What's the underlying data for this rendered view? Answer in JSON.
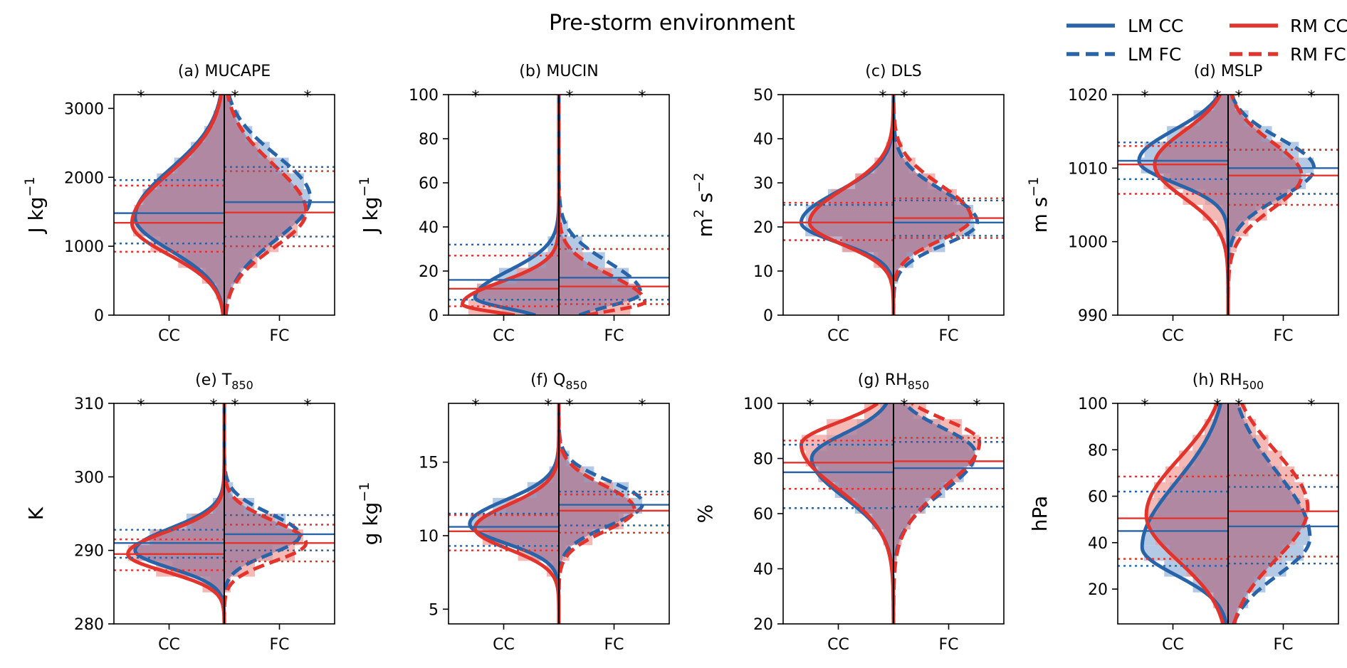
{
  "figure": {
    "title": "Pre-storm environment",
    "colors": {
      "lm": "#2a64a8",
      "rm": "#e2342d",
      "overlap": "#8a6e98",
      "lm_fill": "#93b2d8",
      "rm_fill": "#f09b96",
      "star_black": "#000000"
    },
    "legend": {
      "placement": "top-right",
      "entries": [
        {
          "key": "lm_cc",
          "label": "LM CC",
          "color": "#2a64a8",
          "style": "solid"
        },
        {
          "key": "rm_cc",
          "label": "RM CC",
          "color": "#e2342d",
          "style": "solid"
        },
        {
          "key": "lm_fc",
          "label": "LM FC",
          "color": "#2a64a8",
          "style": "dashed"
        },
        {
          "key": "rm_fc",
          "label": "RM FC",
          "color": "#e2342d",
          "style": "dashed"
        }
      ]
    }
  },
  "chart_data": [
    {
      "type": "violin",
      "title_pre": "(a) MUCAPE",
      "title_sub": "",
      "ylabel_pre": "J kg",
      "ylabel_sup": "−1",
      "ylabel_post": "",
      "ylim": [
        0,
        3200
      ],
      "yticks": [
        "0",
        "1000",
        "2000",
        "3000"
      ],
      "ytick_values": [
        0,
        1000,
        2000,
        3000
      ],
      "categories": [
        "CC",
        "FC"
      ],
      "stars": [
        "black",
        "blue",
        "red",
        "black"
      ],
      "distributions": {
        "lm_cc": {
          "mode": 1420,
          "spread_lo": 480,
          "spread_hi": 700,
          "peak": 0.85
        },
        "rm_cc": {
          "mode": 1330,
          "spread_lo": 450,
          "spread_hi": 720,
          "peak": 0.88
        },
        "lm_fc": {
          "mode": 1700,
          "spread_lo": 600,
          "spread_hi": 620,
          "peak": 0.82
        },
        "rm_fc": {
          "mode": 1500,
          "spread_lo": 520,
          "spread_hi": 680,
          "peak": 0.78
        }
      },
      "stats": {
        "lm_cc": {
          "median": 1480,
          "q1": 1040,
          "q3": 1960
        },
        "rm_cc": {
          "median": 1340,
          "q1": 920,
          "q3": 1880
        },
        "lm_fc": {
          "median": 1640,
          "q1": 1140,
          "q3": 2150
        },
        "rm_fc": {
          "median": 1490,
          "q1": 1000,
          "q3": 2090
        }
      }
    },
    {
      "type": "violin",
      "title_pre": "(b) MUCIN",
      "title_sub": "",
      "ylabel_pre": "J kg",
      "ylabel_sup": "−1",
      "ylabel_post": "",
      "ylim": [
        0,
        100
      ],
      "yticks": [
        "0",
        "20",
        "40",
        "60",
        "80",
        "100"
      ],
      "ytick_values": [
        0,
        20,
        40,
        60,
        80,
        100
      ],
      "categories": [
        "CC",
        "FC"
      ],
      "stars": [
        "black",
        "",
        "red",
        "black"
      ],
      "distributions": {
        "lm_cc": {
          "mode": 8,
          "spread_lo": 5,
          "spread_hi": 12,
          "peak": 0.8
        },
        "rm_cc": {
          "mode": 5,
          "spread_lo": 4,
          "spread_hi": 10,
          "peak": 0.92
        },
        "lm_fc": {
          "mode": 10,
          "spread_lo": 6,
          "spread_hi": 14,
          "peak": 0.78
        },
        "rm_fc": {
          "mode": 6,
          "spread_lo": 4,
          "spread_hi": 12,
          "peak": 0.82
        }
      },
      "stats": {
        "lm_cc": {
          "median": 16,
          "q1": 7,
          "q3": 32
        },
        "rm_cc": {
          "median": 12,
          "q1": 4,
          "q3": 27
        },
        "lm_fc": {
          "median": 17,
          "q1": 7,
          "q3": 36
        },
        "rm_fc": {
          "median": 13,
          "q1": 5,
          "q3": 30
        }
      }
    },
    {
      "type": "violin",
      "title_pre": "(c) DLS",
      "title_sub": "",
      "ylabel_pre": "m",
      "ylabel_sup": "2",
      "ylabel_post": " s",
      "ylabel_sup2": "−2",
      "ylim": [
        0,
        50
      ],
      "yticks": [
        "0",
        "10",
        "20",
        "30",
        "40",
        "50"
      ],
      "ytick_values": [
        0,
        10,
        20,
        30,
        40,
        50
      ],
      "categories": [
        "CC",
        "FC"
      ],
      "stars": [
        "",
        "blue",
        "red",
        ""
      ],
      "distributions": {
        "lm_cc": {
          "mode": 21,
          "spread_lo": 4.5,
          "spread_hi": 7,
          "peak": 0.88
        },
        "rm_cc": {
          "mode": 21,
          "spread_lo": 5,
          "spread_hi": 7.5,
          "peak": 0.8
        },
        "lm_fc": {
          "mode": 21,
          "spread_lo": 5,
          "spread_hi": 7,
          "peak": 0.8
        },
        "rm_fc": {
          "mode": 22,
          "spread_lo": 5,
          "spread_hi": 7.5,
          "peak": 0.74
        }
      },
      "stats": {
        "lm_cc": {
          "median": 21,
          "q1": 17,
          "q3": 25
        },
        "rm_cc": {
          "median": 21,
          "q1": 17,
          "q3": 25.5
        },
        "lm_fc": {
          "median": 21,
          "q1": 18,
          "q3": 26
        },
        "rm_fc": {
          "median": 22,
          "q1": 17.5,
          "q3": 26.5
        }
      }
    },
    {
      "type": "violin",
      "title_pre": "(d) MSLP",
      "title_sub": "",
      "ylabel_pre": "m s",
      "ylabel_sup": "−1",
      "ylabel_post": "",
      "ylim": [
        990,
        1020
      ],
      "yticks": [
        "990",
        "1000",
        "1010",
        "1020"
      ],
      "ytick_values": [
        990,
        1000,
        1010,
        1020
      ],
      "categories": [
        "CC",
        "FC"
      ],
      "stars": [
        "black",
        "blue",
        "red",
        "black"
      ],
      "distributions": {
        "lm_cc": {
          "mode": 1011,
          "spread_lo": 3,
          "spread_hi": 4.2,
          "peak": 0.85
        },
        "rm_cc": {
          "mode": 1010.5,
          "spread_lo": 4.5,
          "spread_hi": 4.5,
          "peak": 0.7
        },
        "lm_fc": {
          "mode": 1010,
          "spread_lo": 4,
          "spread_hi": 4,
          "peak": 0.82
        },
        "rm_fc": {
          "mode": 1009,
          "spread_lo": 4.5,
          "spread_hi": 4.5,
          "peak": 0.7
        }
      },
      "stats": {
        "lm_cc": {
          "median": 1011,
          "q1": 1008.5,
          "q3": 1013.5
        },
        "rm_cc": {
          "median": 1010.5,
          "q1": 1006.5,
          "q3": 1013
        },
        "lm_fc": {
          "median": 1010,
          "q1": 1006.5,
          "q3": 1012.5
        },
        "rm_fc": {
          "median": 1009,
          "q1": 1005,
          "q3": 1012.5
        }
      }
    },
    {
      "type": "violin",
      "title_pre": "(e) T",
      "title_sub": "850",
      "ylabel_pre": "K",
      "ylabel_sup": "",
      "ylabel_post": "",
      "ylim": [
        280,
        310
      ],
      "yticks": [
        "280",
        "290",
        "300",
        "310"
      ],
      "ytick_values": [
        280,
        290,
        300,
        310
      ],
      "categories": [
        "CC",
        "FC"
      ],
      "stars": [
        "black",
        "blue",
        "red",
        "black"
      ],
      "distributions": {
        "lm_cc": {
          "mode": 290,
          "spread_lo": 2.4,
          "spread_hi": 3,
          "peak": 0.85
        },
        "rm_cc": {
          "mode": 289.5,
          "spread_lo": 2.4,
          "spread_hi": 3,
          "peak": 0.92
        },
        "lm_fc": {
          "mode": 292,
          "spread_lo": 2.5,
          "spread_hi": 3,
          "peak": 0.72
        },
        "rm_fc": {
          "mode": 291,
          "spread_lo": 2.5,
          "spread_hi": 3,
          "peak": 0.78
        }
      },
      "stats": {
        "lm_cc": {
          "median": 291,
          "q1": 289,
          "q3": 292.8
        },
        "rm_cc": {
          "median": 289.5,
          "q1": 287.3,
          "q3": 291.5
        },
        "lm_fc": {
          "median": 292.2,
          "q1": 290,
          "q3": 294.8
        },
        "rm_fc": {
          "median": 291,
          "q1": 288.5,
          "q3": 293.5
        }
      }
    },
    {
      "type": "violin",
      "title_pre": "(f) Q",
      "title_sub": "850",
      "ylabel_pre": "g kg",
      "ylabel_sup": "−1",
      "ylabel_post": "",
      "ylim": [
        4,
        19
      ],
      "yticks": [
        "5",
        "10",
        "15"
      ],
      "ytick_values": [
        5,
        10,
        15
      ],
      "categories": [
        "CC",
        "FC"
      ],
      "stars": [
        "black",
        "blue",
        "red",
        "black"
      ],
      "distributions": {
        "lm_cc": {
          "mode": 10.8,
          "spread_lo": 1.3,
          "spread_hi": 1.6,
          "peak": 0.85
        },
        "rm_cc": {
          "mode": 10.5,
          "spread_lo": 1.4,
          "spread_hi": 1.6,
          "peak": 0.8
        },
        "lm_fc": {
          "mode": 12.2,
          "spread_lo": 1.5,
          "spread_hi": 1.5,
          "peak": 0.8
        },
        "rm_fc": {
          "mode": 11.8,
          "spread_lo": 1.5,
          "spread_hi": 1.6,
          "peak": 0.72
        }
      },
      "stats": {
        "lm_cc": {
          "median": 10.6,
          "q1": 9.3,
          "q3": 11.5
        },
        "rm_cc": {
          "median": 10.3,
          "q1": 9,
          "q3": 11.4
        },
        "lm_fc": {
          "median": 12.1,
          "q1": 10.7,
          "q3": 13
        },
        "rm_fc": {
          "median": 11.7,
          "q1": 10.2,
          "q3": 12.8
        }
      }
    },
    {
      "type": "violin",
      "title_pre": "(g) RH",
      "title_sub": "850",
      "ylabel_pre": "%",
      "ylabel_sup": "",
      "ylabel_post": "",
      "ylim": [
        20,
        100
      ],
      "yticks": [
        "20",
        "40",
        "60",
        "80",
        "100"
      ],
      "ytick_values": [
        20,
        40,
        60,
        80,
        100
      ],
      "categories": [
        "CC",
        "FC"
      ],
      "stars": [
        "black",
        "",
        "red",
        "black"
      ],
      "distributions": {
        "lm_cc": {
          "mode": 80,
          "spread_lo": 14,
          "spread_hi": 9,
          "peak": 0.78
        },
        "rm_cc": {
          "mode": 85,
          "spread_lo": 16,
          "spread_hi": 8,
          "peak": 0.88
        },
        "lm_fc": {
          "mode": 82,
          "spread_lo": 14,
          "spread_hi": 9,
          "peak": 0.78
        },
        "rm_fc": {
          "mode": 86,
          "spread_lo": 16,
          "spread_hi": 8,
          "peak": 0.82
        }
      },
      "stats": {
        "lm_cc": {
          "median": 75,
          "q1": 62,
          "q3": 85
        },
        "rm_cc": {
          "median": 78.5,
          "q1": 69,
          "q3": 86.5
        },
        "lm_fc": {
          "median": 76.5,
          "q1": 62.5,
          "q3": 86
        },
        "rm_fc": {
          "median": 79,
          "q1": 69,
          "q3": 87.5
        }
      }
    },
    {
      "type": "violin",
      "title_pre": "(h) RH",
      "title_sub": "500",
      "ylabel_pre": "hPa",
      "ylabel_sup": "",
      "ylabel_post": "",
      "ylim": [
        5,
        100
      ],
      "yticks": [
        "20",
        "40",
        "60",
        "80",
        "100"
      ],
      "ytick_values": [
        20,
        40,
        60,
        80,
        100
      ],
      "categories": [
        "CC",
        "FC"
      ],
      "stars": [
        "black",
        "blue",
        "red",
        "black"
      ],
      "distributions": {
        "lm_cc": {
          "mode": 38,
          "spread_lo": 12,
          "spread_hi": 28,
          "peak": 0.82
        },
        "rm_cc": {
          "mode": 52,
          "spread_lo": 20,
          "spread_hi": 24,
          "peak": 0.78
        },
        "lm_fc": {
          "mode": 42,
          "spread_lo": 16,
          "spread_hi": 28,
          "peak": 0.78
        },
        "rm_fc": {
          "mode": 55,
          "spread_lo": 22,
          "spread_hi": 24,
          "peak": 0.76
        }
      },
      "stats": {
        "lm_cc": {
          "median": 45,
          "q1": 30,
          "q3": 62
        },
        "rm_cc": {
          "median": 50.5,
          "q1": 33,
          "q3": 68.5
        },
        "lm_fc": {
          "median": 47,
          "q1": 31,
          "q3": 64
        },
        "rm_fc": {
          "median": 53.5,
          "q1": 34,
          "q3": 69
        }
      }
    }
  ]
}
